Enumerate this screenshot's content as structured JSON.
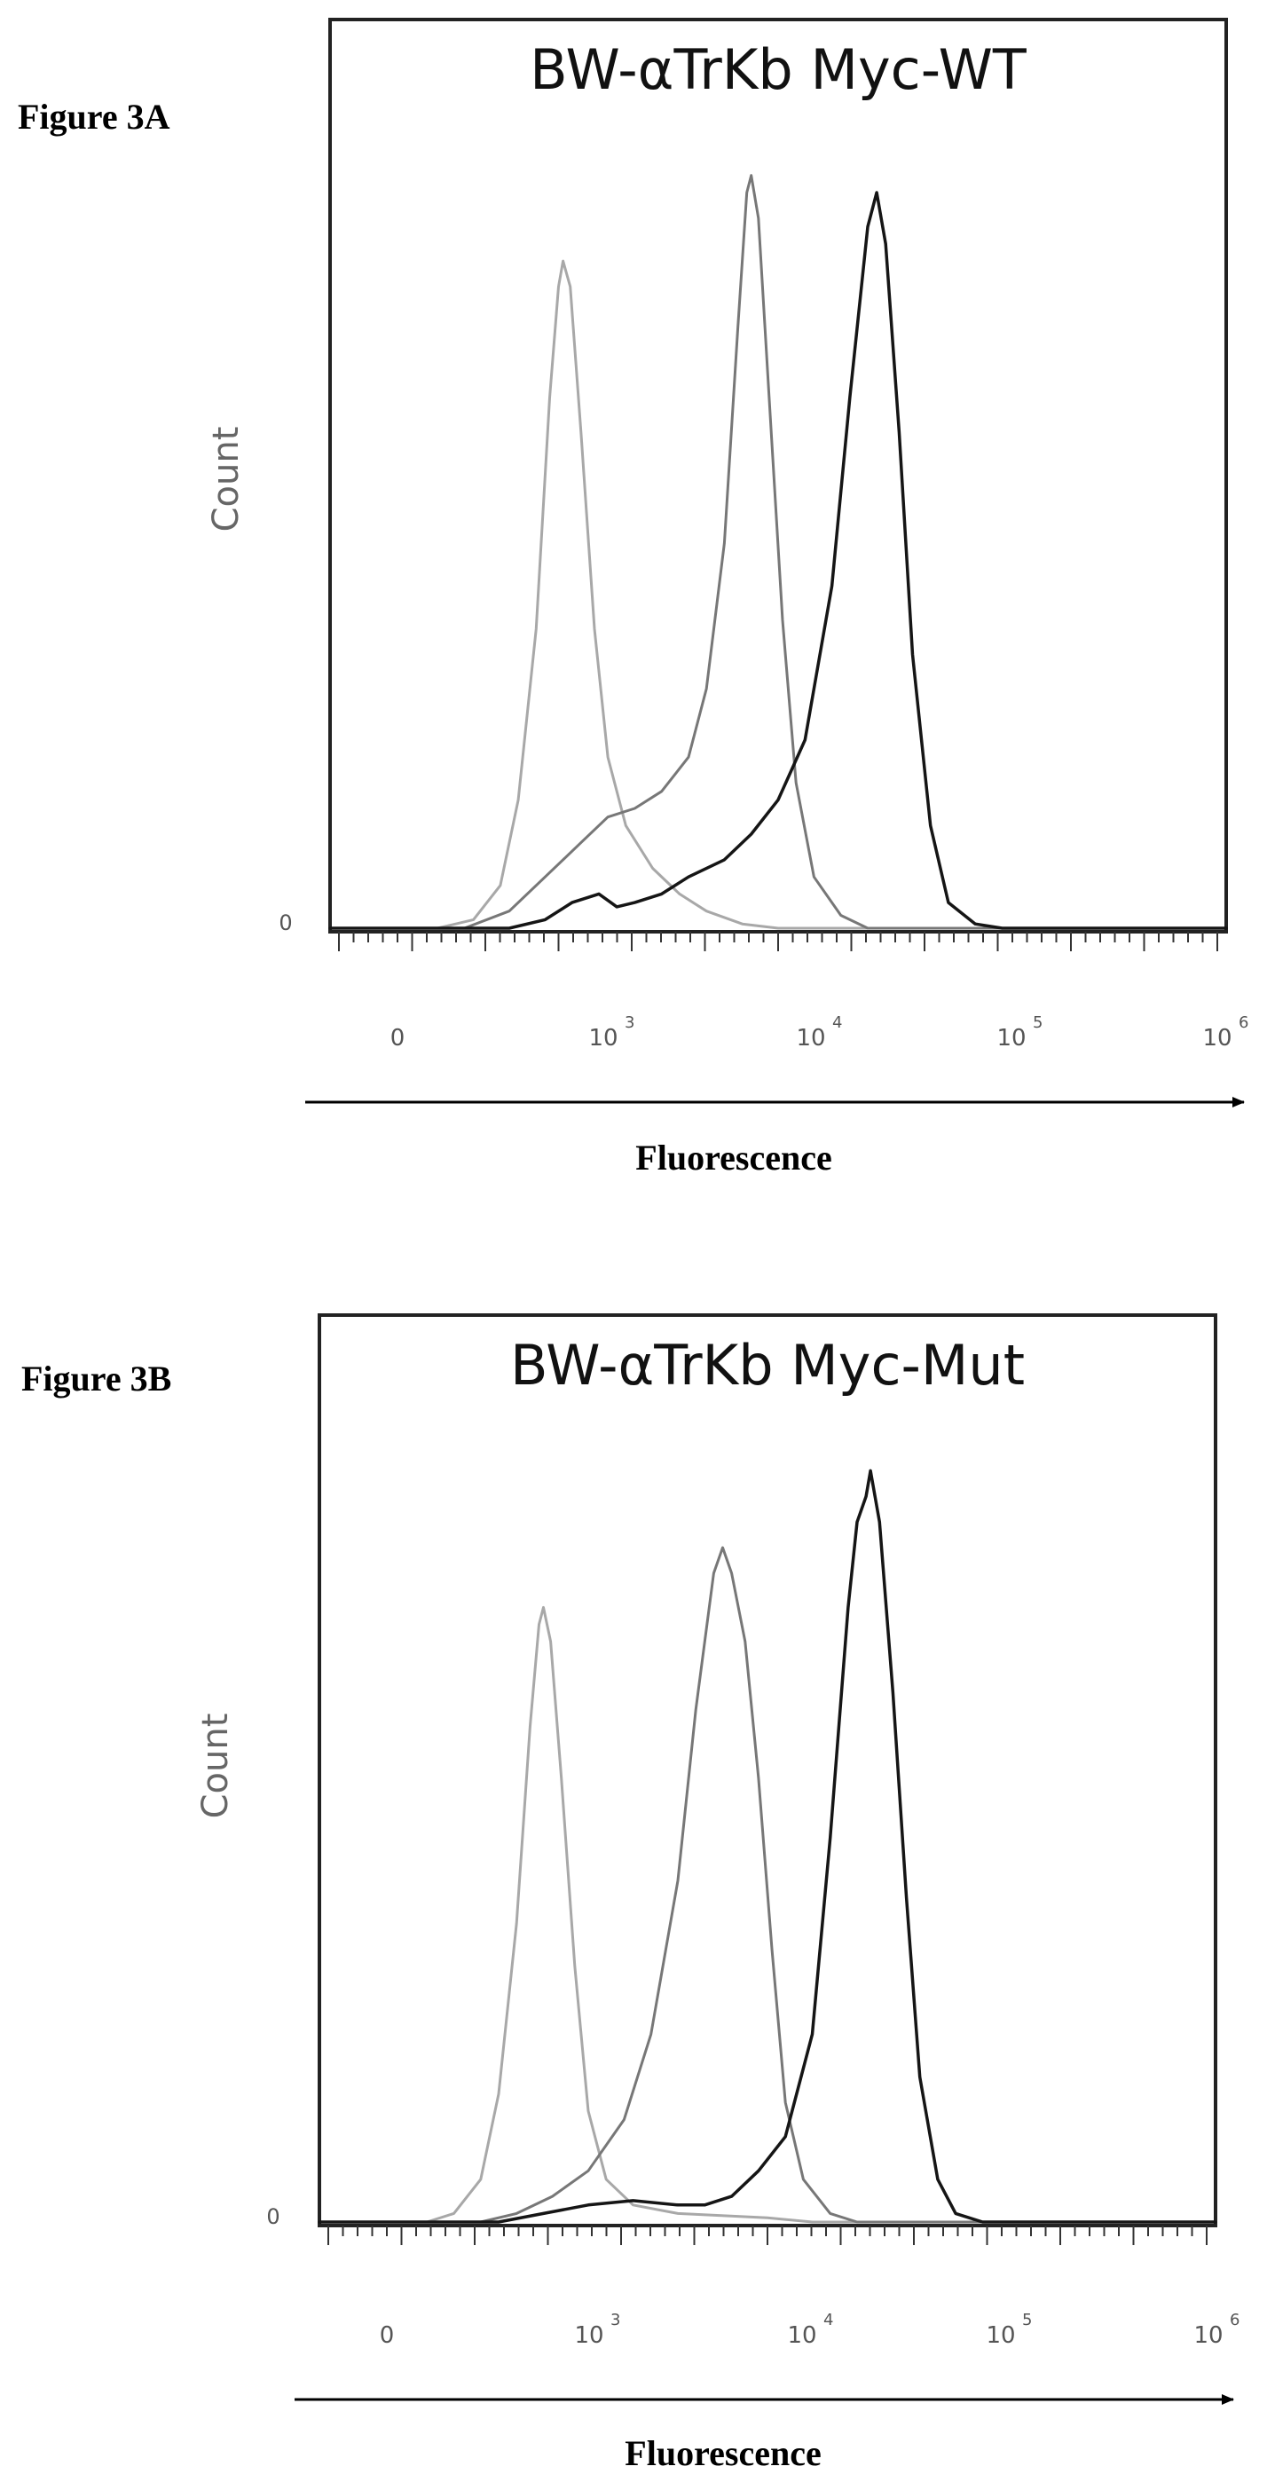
{
  "chart_data": [
    {
      "figure_label": "Figure 3A",
      "type": "line",
      "title": "BW-αTrKb Myc-WT",
      "ylabel": "Count",
      "xlabel": "Fluorescence",
      "x_scale": "log",
      "y_tick_label": "0",
      "x_ticks": [
        {
          "base": "0",
          "exp": ""
        },
        {
          "base": "10",
          "exp": "3"
        },
        {
          "base": "10",
          "exp": "4"
        },
        {
          "base": "10",
          "exp": "5"
        },
        {
          "base": "10",
          "exp": "6"
        }
      ],
      "series": [
        {
          "color": "#a8a8a8",
          "width": 3,
          "points": [
            [
              0.0,
              0
            ],
            [
              0.12,
              0
            ],
            [
              0.16,
              0.01
            ],
            [
              0.19,
              0.05
            ],
            [
              0.21,
              0.15
            ],
            [
              0.23,
              0.35
            ],
            [
              0.245,
              0.62
            ],
            [
              0.255,
              0.75
            ],
            [
              0.26,
              0.78
            ],
            [
              0.268,
              0.75
            ],
            [
              0.28,
              0.58
            ],
            [
              0.295,
              0.35
            ],
            [
              0.31,
              0.2
            ],
            [
              0.33,
              0.12
            ],
            [
              0.36,
              0.07
            ],
            [
              0.39,
              0.04
            ],
            [
              0.42,
              0.02
            ],
            [
              0.46,
              0.005
            ],
            [
              0.5,
              0
            ],
            [
              1.0,
              0
            ]
          ]
        },
        {
          "color": "#777777",
          "width": 3,
          "points": [
            [
              0.0,
              0
            ],
            [
              0.15,
              0
            ],
            [
              0.2,
              0.02
            ],
            [
              0.24,
              0.06
            ],
            [
              0.28,
              0.1
            ],
            [
              0.31,
              0.13
            ],
            [
              0.34,
              0.14
            ],
            [
              0.37,
              0.16
            ],
            [
              0.4,
              0.2
            ],
            [
              0.42,
              0.28
            ],
            [
              0.44,
              0.45
            ],
            [
              0.455,
              0.7
            ],
            [
              0.465,
              0.86
            ],
            [
              0.47,
              0.88
            ],
            [
              0.478,
              0.83
            ],
            [
              0.49,
              0.62
            ],
            [
              0.505,
              0.36
            ],
            [
              0.52,
              0.17
            ],
            [
              0.54,
              0.06
            ],
            [
              0.57,
              0.015
            ],
            [
              0.6,
              0
            ],
            [
              1.0,
              0
            ]
          ]
        },
        {
          "color": "#151515",
          "width": 3.5,
          "points": [
            [
              0.0,
              0
            ],
            [
              0.2,
              0
            ],
            [
              0.24,
              0.01
            ],
            [
              0.27,
              0.03
            ],
            [
              0.3,
              0.04
            ],
            [
              0.32,
              0.025
            ],
            [
              0.34,
              0.03
            ],
            [
              0.37,
              0.04
            ],
            [
              0.4,
              0.06
            ],
            [
              0.44,
              0.08
            ],
            [
              0.47,
              0.11
            ],
            [
              0.5,
              0.15
            ],
            [
              0.53,
              0.22
            ],
            [
              0.56,
              0.4
            ],
            [
              0.58,
              0.62
            ],
            [
              0.6,
              0.82
            ],
            [
              0.61,
              0.86
            ],
            [
              0.62,
              0.8
            ],
            [
              0.635,
              0.58
            ],
            [
              0.65,
              0.32
            ],
            [
              0.67,
              0.12
            ],
            [
              0.69,
              0.03
            ],
            [
              0.72,
              0.005
            ],
            [
              0.75,
              0
            ],
            [
              1.0,
              0
            ]
          ]
        }
      ]
    },
    {
      "figure_label": "Figure 3B",
      "type": "line",
      "title": "BW-αTrKb Myc-Mut",
      "ylabel": "Count",
      "xlabel": "Fluorescence",
      "x_scale": "log",
      "y_tick_label": "0",
      "x_ticks": [
        {
          "base": "0",
          "exp": ""
        },
        {
          "base": "10",
          "exp": "3"
        },
        {
          "base": "10",
          "exp": "4"
        },
        {
          "base": "10",
          "exp": "5"
        },
        {
          "base": "10",
          "exp": "6"
        }
      ],
      "series": [
        {
          "color": "#a8a8a8",
          "width": 3,
          "points": [
            [
              0.0,
              0
            ],
            [
              0.12,
              0
            ],
            [
              0.15,
              0.01
            ],
            [
              0.18,
              0.05
            ],
            [
              0.2,
              0.15
            ],
            [
              0.22,
              0.35
            ],
            [
              0.235,
              0.58
            ],
            [
              0.245,
              0.7
            ],
            [
              0.25,
              0.72
            ],
            [
              0.258,
              0.68
            ],
            [
              0.27,
              0.52
            ],
            [
              0.285,
              0.3
            ],
            [
              0.3,
              0.13
            ],
            [
              0.32,
              0.05
            ],
            [
              0.35,
              0.02
            ],
            [
              0.4,
              0.01
            ],
            [
              0.5,
              0.005
            ],
            [
              0.55,
              0
            ],
            [
              1.0,
              0
            ]
          ]
        },
        {
          "color": "#777777",
          "width": 3,
          "points": [
            [
              0.0,
              0
            ],
            [
              0.18,
              0
            ],
            [
              0.22,
              0.01
            ],
            [
              0.26,
              0.03
            ],
            [
              0.3,
              0.06
            ],
            [
              0.34,
              0.12
            ],
            [
              0.37,
              0.22
            ],
            [
              0.4,
              0.4
            ],
            [
              0.42,
              0.6
            ],
            [
              0.44,
              0.76
            ],
            [
              0.45,
              0.79
            ],
            [
              0.46,
              0.76
            ],
            [
              0.475,
              0.68
            ],
            [
              0.49,
              0.52
            ],
            [
              0.505,
              0.32
            ],
            [
              0.52,
              0.14
            ],
            [
              0.54,
              0.05
            ],
            [
              0.57,
              0.01
            ],
            [
              0.6,
              0
            ],
            [
              1.0,
              0
            ]
          ]
        },
        {
          "color": "#151515",
          "width": 3.5,
          "points": [
            [
              0.0,
              0
            ],
            [
              0.2,
              0
            ],
            [
              0.25,
              0.01
            ],
            [
              0.3,
              0.02
            ],
            [
              0.35,
              0.025
            ],
            [
              0.4,
              0.02
            ],
            [
              0.43,
              0.02
            ],
            [
              0.46,
              0.03
            ],
            [
              0.49,
              0.06
            ],
            [
              0.52,
              0.1
            ],
            [
              0.55,
              0.22
            ],
            [
              0.57,
              0.45
            ],
            [
              0.59,
              0.72
            ],
            [
              0.6,
              0.82
            ],
            [
              0.61,
              0.85
            ],
            [
              0.615,
              0.88
            ],
            [
              0.625,
              0.82
            ],
            [
              0.64,
              0.62
            ],
            [
              0.655,
              0.38
            ],
            [
              0.67,
              0.17
            ],
            [
              0.69,
              0.05
            ],
            [
              0.71,
              0.01
            ],
            [
              0.74,
              0
            ],
            [
              1.0,
              0
            ]
          ]
        }
      ]
    }
  ]
}
